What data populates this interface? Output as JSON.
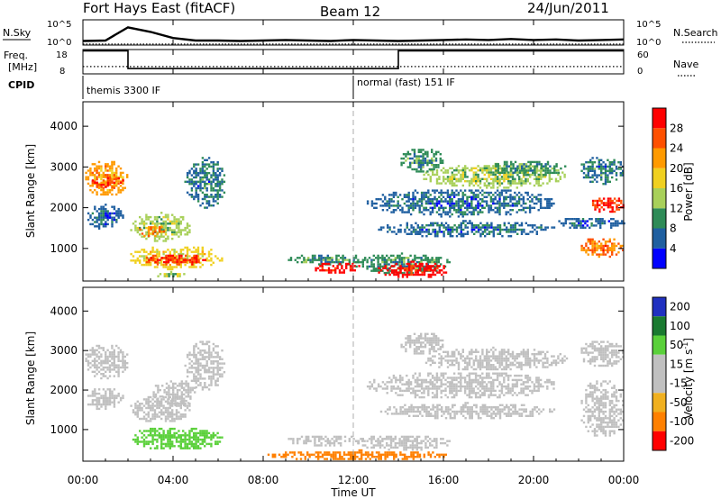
{
  "header": {
    "station": "Fort Hays East (fitACF)",
    "beam": "Beam 12",
    "date": "24/Jun/2011"
  },
  "strip_labels": {
    "nsky": "N.Sky",
    "nsky_ticks": [
      "10^5",
      "10^0"
    ],
    "nsearch": "N.Search",
    "nsearch_ticks": [
      "10^5",
      "10^0"
    ],
    "freq_line1": "Freq.",
    "freq_line2": "[MHz]",
    "freq_ticks": [
      "18",
      "8"
    ],
    "nave": "Nave",
    "nave_ticks": [
      "60",
      "0"
    ],
    "cpid": "CPID"
  },
  "cpid_segments": [
    {
      "label": "themis 3300 IF",
      "start_hour": 0,
      "end_hour": 12
    },
    {
      "label": "normal (fast) 151 IF",
      "start_hour": 12,
      "end_hour": 24
    }
  ],
  "colors": {
    "power_scale": [
      "#0000ff",
      "#1f5fa0",
      "#2e8b57",
      "#a8d05a",
      "#f0d020",
      "#ff9a00",
      "#ff5000",
      "#ff0000"
    ],
    "velocity_scale": [
      "#2030c0",
      "#1a7a30",
      "#5ad03a",
      "#c0c0c0",
      "#c0c0c0",
      "#f0b020",
      "#ff8000",
      "#ff0000"
    ]
  },
  "chart_data": [
    {
      "type": "line",
      "panel": "sky-noise",
      "series": [
        {
          "name": "N.Sky",
          "y_log": [
            0.8,
            0.9,
            3.5,
            2.6,
            1.4,
            0.9,
            0.9,
            0.8,
            0.9,
            1.0,
            0.9,
            0.8,
            1.0,
            0.9,
            0.8,
            0.9,
            1.0,
            1.1,
            1.0,
            1.2,
            1.0,
            1.1,
            0.9,
            1.0,
            1.1
          ]
        },
        {
          "name": "N.Search",
          "y_log": [
            0.2,
            0.2,
            0.2,
            0.2,
            0.2,
            0.2,
            0.2,
            0.2,
            0.2,
            0.2,
            0.2,
            0.2,
            0.2,
            0.2,
            0.2,
            0.2,
            0.2,
            0.2,
            0.2,
            0.2,
            0.2,
            0.2,
            0.2,
            0.2,
            0.2
          ]
        }
      ],
      "ylim": [
        0,
        5
      ]
    },
    {
      "type": "line",
      "panel": "frequency-nave",
      "series": [
        {
          "name": "Freq.",
          "points": [
            [
              0,
              17.5
            ],
            [
              2,
              17.5
            ],
            [
              2,
              10.2
            ],
            [
              14,
              10.2
            ],
            [
              14,
              17.5
            ],
            [
              24,
              17.5
            ]
          ],
          "ylim": [
            8,
            18
          ]
        },
        {
          "name": "Nave",
          "points": [
            [
              0,
              18
            ],
            [
              24,
              18
            ]
          ],
          "ylim": [
            0,
            60
          ]
        }
      ]
    },
    {
      "type": "heatmap",
      "panel": "power",
      "x": "hours",
      "xlim": [
        0,
        24
      ],
      "xticks": [
        "00:00",
        "04:00",
        "08:00",
        "12:00",
        "16:00",
        "20:00",
        "00:00"
      ],
      "ylabel": "Slant Range [km]",
      "ylim": [
        200,
        4600
      ],
      "yticks": [
        1000,
        2000,
        3000,
        4000
      ],
      "colorbar_label": "Power [dB]",
      "colorbar_ticks": [
        4,
        8,
        12,
        16,
        20,
        24,
        28
      ],
      "colorbar_range": [
        0,
        32
      ],
      "patches": [
        {
          "t0": 0.0,
          "t1": 2.0,
          "r0": 2300,
          "r1": 3200,
          "v": 22
        },
        {
          "t0": 0.2,
          "t1": 1.8,
          "r0": 2500,
          "r1": 2800,
          "v": 28
        },
        {
          "t0": 0.1,
          "t1": 1.8,
          "r0": 1500,
          "r1": 2100,
          "v": 6
        },
        {
          "t0": 2.0,
          "t1": 4.8,
          "r0": 1200,
          "r1": 1900,
          "v": 14
        },
        {
          "t0": 2.4,
          "t1": 3.6,
          "r0": 1300,
          "r1": 1600,
          "v": 24
        },
        {
          "t0": 2.0,
          "t1": 6.2,
          "r0": 500,
          "r1": 1100,
          "v": 18
        },
        {
          "t0": 2.6,
          "t1": 5.4,
          "r0": 600,
          "r1": 900,
          "v": 28
        },
        {
          "t0": 3.2,
          "t1": 4.5,
          "r0": 300,
          "r1": 450,
          "v": 14
        },
        {
          "t0": 4.5,
          "t1": 6.3,
          "r0": 2000,
          "r1": 3300,
          "v": 8
        },
        {
          "t0": 9.0,
          "t1": 12.5,
          "r0": 600,
          "r1": 900,
          "v": 10
        },
        {
          "t0": 10.2,
          "t1": 12.3,
          "r0": 400,
          "r1": 700,
          "v": 30
        },
        {
          "t0": 12.0,
          "t1": 16.3,
          "r0": 400,
          "r1": 900,
          "v": 10
        },
        {
          "t0": 13.0,
          "t1": 16.2,
          "r0": 300,
          "r1": 700,
          "v": 30
        },
        {
          "t0": 12.5,
          "t1": 21.0,
          "r0": 1800,
          "r1": 2500,
          "v": 7
        },
        {
          "t0": 13.0,
          "t1": 21.0,
          "r0": 1300,
          "r1": 1700,
          "v": 7
        },
        {
          "t0": 15.0,
          "t1": 21.5,
          "r0": 2500,
          "r1": 3100,
          "v": 14
        },
        {
          "t0": 18.0,
          "t1": 21.5,
          "r0": 2800,
          "r1": 3200,
          "v": 10
        },
        {
          "t0": 22.0,
          "t1": 24.0,
          "r0": 2600,
          "r1": 3300,
          "v": 8
        },
        {
          "t0": 22.5,
          "t1": 24.0,
          "r0": 1900,
          "r1": 2300,
          "v": 28
        },
        {
          "t0": 22.0,
          "t1": 24.0,
          "r0": 800,
          "r1": 1300,
          "v": 24
        },
        {
          "t0": 14.0,
          "t1": 16.0,
          "r0": 2900,
          "r1": 3500,
          "v": 10
        },
        {
          "t0": 21.0,
          "t1": 24.0,
          "r0": 1500,
          "r1": 1800,
          "v": 6
        }
      ]
    },
    {
      "type": "heatmap",
      "panel": "velocity",
      "x": "hours",
      "xlim": [
        0,
        24
      ],
      "xticks": [
        "00:00",
        "04:00",
        "08:00",
        "12:00",
        "16:00",
        "20:00",
        "00:00"
      ],
      "xlabel": "Time UT",
      "ylabel": "Slant Range [km]",
      "ylim": [
        200,
        4600
      ],
      "yticks": [
        1000,
        2000,
        3000,
        4000
      ],
      "colorbar_label": "Velocity [m s^-1]",
      "colorbar_ticks": [
        "200",
        "100",
        "50",
        "15",
        "-15",
        "-50",
        "-100",
        "-200"
      ],
      "patches": [
        {
          "t0": 0.0,
          "t1": 2.0,
          "r0": 2300,
          "r1": 3200,
          "v": 0
        },
        {
          "t0": 0.1,
          "t1": 1.8,
          "r0": 1500,
          "r1": 2100,
          "v": 0
        },
        {
          "t0": 2.0,
          "t1": 4.8,
          "r0": 1200,
          "r1": 1900,
          "v": 0
        },
        {
          "t0": 2.0,
          "t1": 6.2,
          "r0": 500,
          "r1": 1100,
          "v": 60
        },
        {
          "t0": 3.0,
          "t1": 5.0,
          "r0": 1600,
          "r1": 2300,
          "v": 0
        },
        {
          "t0": 4.5,
          "t1": 6.3,
          "r0": 2000,
          "r1": 3300,
          "v": 0
        },
        {
          "t0": 9.0,
          "t1": 12.5,
          "r0": 600,
          "r1": 900,
          "v": 0
        },
        {
          "t0": 8.0,
          "t1": 16.3,
          "r0": 250,
          "r1": 500,
          "v": -60
        },
        {
          "t0": 12.0,
          "t1": 16.3,
          "r0": 500,
          "r1": 900,
          "v": 0
        },
        {
          "t0": 12.5,
          "t1": 21.0,
          "r0": 1800,
          "r1": 2500,
          "v": 0
        },
        {
          "t0": 13.0,
          "t1": 21.0,
          "r0": 1300,
          "r1": 1700,
          "v": 0
        },
        {
          "t0": 15.0,
          "t1": 21.5,
          "r0": 2500,
          "r1": 3100,
          "v": 0
        },
        {
          "t0": 22.0,
          "t1": 24.0,
          "r0": 2600,
          "r1": 3300,
          "v": 0
        },
        {
          "t0": 22.0,
          "t1": 24.0,
          "r0": 800,
          "r1": 2300,
          "v": 0
        },
        {
          "t0": 14.0,
          "t1": 16.0,
          "r0": 2900,
          "r1": 3500,
          "v": 0
        }
      ]
    }
  ]
}
